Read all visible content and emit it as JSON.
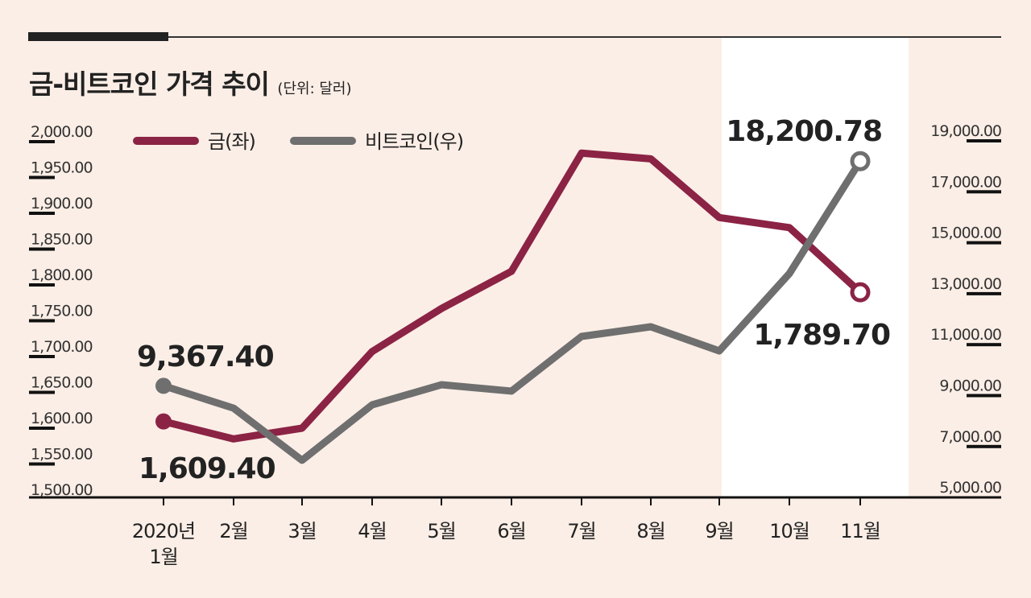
{
  "chart_data": {
    "type": "line",
    "title": "금-비트코인 가격 추이",
    "unit_note": "(단위: 달러)",
    "categories": [
      "2020년\n1월",
      "2월",
      "3월",
      "4월",
      "5월",
      "6월",
      "7월",
      "8월",
      "9월",
      "10월",
      "11월"
    ],
    "series": [
      {
        "name": "금(좌)",
        "axis": "left",
        "color": "#8b2345",
        "values": [
          1609.4,
          1585,
          1600,
          1707,
          1767,
          1819,
          1984,
          1976,
          1894,
          1880,
          1789.7
        ]
      },
      {
        "name": "비트코인(우)",
        "axis": "right",
        "color": "#6f6f6f",
        "values": [
          9367.4,
          8490,
          6440,
          8620,
          9410,
          9160,
          11310,
          11690,
          10740,
          13780,
          18200.78
        ]
      }
    ],
    "left_axis": {
      "range": [
        1500,
        2000
      ],
      "ticks": [
        "2,000.00",
        "1,950.00",
        "1,900.00",
        "1,850.00",
        "1,800.00",
        "1,750.00",
        "1,700.00",
        "1,650.00",
        "1,600.00",
        "1,550.00",
        "1,500.00"
      ]
    },
    "right_axis": {
      "range": [
        5000,
        19000
      ],
      "ticks": [
        "19,000.00",
        "17,000.00",
        "15,000.00",
        "13,000.00",
        "11,000.00",
        "9,000.00",
        "7,000.00",
        "5,000.00"
      ]
    },
    "annotations": [
      "9,367.40",
      "1,609.40",
      "18,200.78",
      "1,789.70"
    ],
    "highlight_band": [
      "9월",
      "11월"
    ],
    "legend_placement": "top-left",
    "grid": false
  }
}
